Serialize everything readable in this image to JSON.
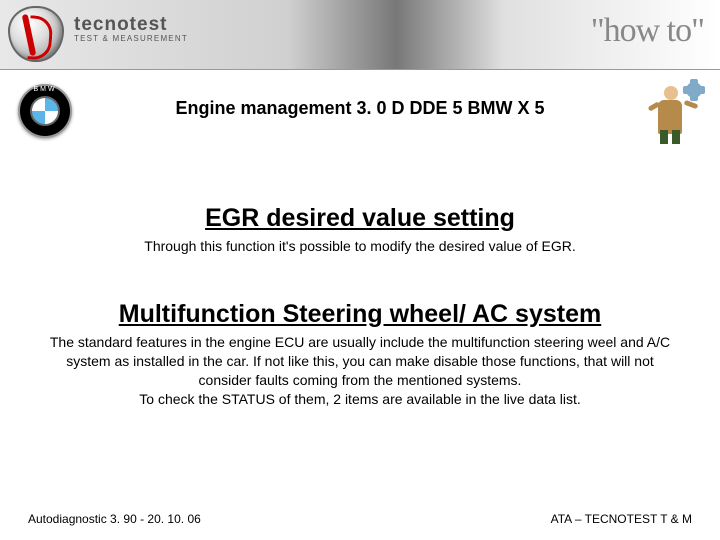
{
  "header": {
    "brand_main": "tecnotest",
    "brand_sub": "TEST & MEASUREMENT",
    "howto_prefix": "\"",
    "howto_text": "how to",
    "howto_suffix": "\""
  },
  "title": "Engine management 3. 0 D DDE 5 BMW X 5",
  "sections": [
    {
      "heading": "EGR desired value setting",
      "body": "Through this function it's possible to modify the desired value of EGR."
    },
    {
      "heading": "Multifunction Steering wheel/ AC system",
      "body": "The standard features in the engine ECU are usually include the multifunction steering weel and A/C system as installed in the car. If not like this, you can make disable those functions, that will not consider faults coming from the mentioned systems.\nTo check the STATUS of them, 2 items are available in the live data list."
    }
  ],
  "footer": {
    "left": "Autodiagnostic 3. 90 - 20. 10. 06",
    "right": "ATA – TECNOTEST T & M"
  }
}
